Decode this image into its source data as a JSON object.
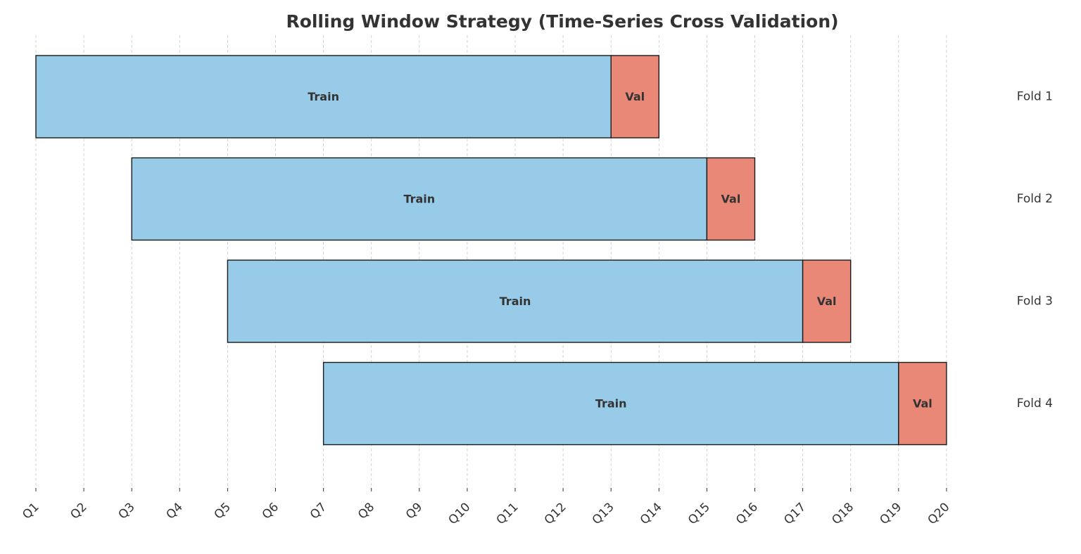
{
  "chart_data": {
    "type": "bar",
    "orientation": "horizontal",
    "stacked": true,
    "title": "Rolling Window Strategy (Time-Series Cross Validation)",
    "xlabel": "",
    "ylabel": "",
    "x_categories": [
      "Q1",
      "Q2",
      "Q3",
      "Q4",
      "Q5",
      "Q6",
      "Q7",
      "Q8",
      "Q9",
      "Q10",
      "Q11",
      "Q12",
      "Q13",
      "Q14",
      "Q15",
      "Q16",
      "Q17",
      "Q18",
      "Q19",
      "Q20"
    ],
    "grid": "vertical dashed",
    "folds": [
      {
        "label": "Fold 1",
        "train": {
          "start": "Q1",
          "end": "Q13",
          "text": "Train"
        },
        "val": {
          "start": "Q13",
          "end": "Q14",
          "text": "Val"
        }
      },
      {
        "label": "Fold 2",
        "train": {
          "start": "Q3",
          "end": "Q15",
          "text": "Train"
        },
        "val": {
          "start": "Q15",
          "end": "Q16",
          "text": "Val"
        }
      },
      {
        "label": "Fold 3",
        "train": {
          "start": "Q5",
          "end": "Q17",
          "text": "Train"
        },
        "val": {
          "start": "Q17",
          "end": "Q18",
          "text": "Val"
        }
      },
      {
        "label": "Fold 4",
        "train": {
          "start": "Q7",
          "end": "Q19",
          "text": "Train"
        },
        "val": {
          "start": "Q19",
          "end": "Q20",
          "text": "Val"
        }
      }
    ],
    "colors": {
      "train": "#97cbe8",
      "val": "#e98877",
      "edge": "#1a1a1a",
      "grid": "#c8c8c8",
      "text": "#333333"
    }
  }
}
